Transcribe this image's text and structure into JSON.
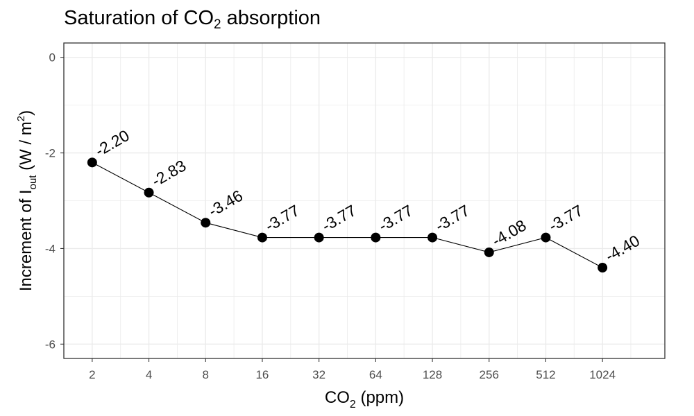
{
  "title": {
    "prefix": "Saturation of CO",
    "sub": "2",
    "suffix": " absorption"
  },
  "chart_data": {
    "type": "line",
    "title": "Saturation of CO2 absorption",
    "xlabel": "CO2 (ppm)",
    "ylabel": "Increment of Iout (W/m2)",
    "x_scale": "log2",
    "categories": [
      "2",
      "4",
      "8",
      "16",
      "32",
      "64",
      "128",
      "256",
      "512",
      "1024"
    ],
    "x": [
      2,
      4,
      8,
      16,
      32,
      64,
      128,
      256,
      512,
      1024
    ],
    "values": [
      -2.2,
      -2.83,
      -3.46,
      -3.77,
      -3.77,
      -3.77,
      -3.77,
      -4.08,
      -3.77,
      -4.4
    ],
    "data_labels": [
      "-2.20",
      "-2.83",
      "-3.46",
      "-3.77",
      "-3.77",
      "-3.77",
      "-3.77",
      "-4.08",
      "-3.77",
      "-4.40"
    ],
    "ylim": [
      -6.3,
      0.3
    ],
    "yticks": [
      0,
      -2,
      -4,
      -6
    ],
    "ytick_labels": [
      "0",
      "-2",
      "-4",
      "-6"
    ],
    "grid": true,
    "colors": {
      "line": "#000000",
      "point": "#000000",
      "grid": "#ebebeb",
      "panel_border": "#333333"
    }
  }
}
